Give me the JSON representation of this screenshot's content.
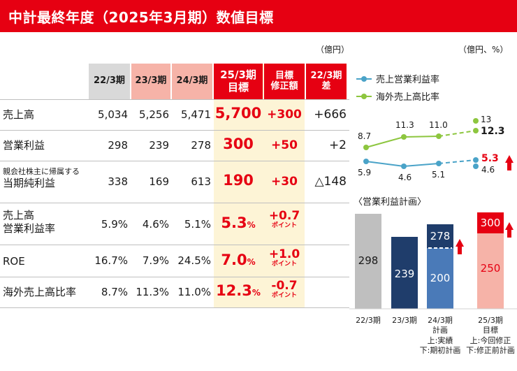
{
  "header": {
    "title": "中計最終年度（2025年3月期）数値目標"
  },
  "table": {
    "unit": "（億円）",
    "columns": [
      {
        "line1": "22/3期",
        "line2": ""
      },
      {
        "line1": "23/3期",
        "line2": ""
      },
      {
        "line1": "24/3期",
        "line2": ""
      },
      {
        "line1": "25/3期",
        "line2": "目標"
      },
      {
        "line1": "目標",
        "line2": "修正額"
      },
      {
        "line1": "22/3期",
        "line2": "差"
      }
    ],
    "rows": [
      {
        "label": "売上高",
        "label_small": "",
        "label2": "",
        "v22": "5,034",
        "v23": "5,256",
        "v24": "5,471",
        "target": "5,700",
        "target_unit": "",
        "revision": "+300",
        "revision_unit": "",
        "diff": "+666"
      },
      {
        "label": "営業利益",
        "label_small": "",
        "label2": "",
        "v22": "298",
        "v23": "239",
        "v24": "278",
        "target": "300",
        "target_unit": "",
        "revision": "+50",
        "revision_unit": "",
        "diff": "+2"
      },
      {
        "label": "",
        "label_small": "親会社株主に帰属する",
        "label2": "当期純利益",
        "v22": "338",
        "v23": "169",
        "v24": "613",
        "target": "190",
        "target_unit": "",
        "revision": "+30",
        "revision_unit": "",
        "diff": "△148"
      },
      {
        "label": "売上高",
        "label_small": "",
        "label2": "営業利益率",
        "v22": "5.9%",
        "v23": "4.6%",
        "v24": "5.1%",
        "target": "5.3",
        "target_unit": "%",
        "revision": "+0.7",
        "revision_unit": "ポイント",
        "diff": ""
      },
      {
        "label": "ROE",
        "label_small": "",
        "label2": "",
        "v22": "16.7%",
        "v23": "7.9%",
        "v24": "24.5%",
        "target": "7.0",
        "target_unit": "%",
        "revision": "+1.0",
        "revision_unit": "ポイント",
        "diff": ""
      },
      {
        "label": "海外売上高比率",
        "label_small": "",
        "label2": "",
        "v22": "8.7%",
        "v23": "11.3%",
        "v24": "11.0%",
        "target": "12.3",
        "target_unit": "%",
        "revision": "-0.7",
        "revision_unit": "ポイント",
        "diff": ""
      }
    ]
  },
  "line_chart": {
    "unit": "（億円、%）",
    "legend": [
      "売上営業利益率",
      "海外売上高比率"
    ],
    "colors": {
      "blue": "#4aa3c8",
      "green": "#8dc63f",
      "red": "#e60012"
    },
    "margin_values": [
      "5.9",
      "4.6",
      "5.1"
    ],
    "margin_target_new": "5.3",
    "margin_target_old": "4.6",
    "overseas_values": [
      "8.7",
      "11.3",
      "11.0"
    ],
    "overseas_target_old": "13",
    "overseas_target_new": "12.3"
  },
  "bar_chart": {
    "title": "〈営業利益計画〉",
    "bars": [
      {
        "value": "298",
        "categories": [
          "22/3期"
        ]
      },
      {
        "value": "239",
        "categories": [
          "23/3期"
        ]
      },
      {
        "value_top": "278",
        "value_bottom": "200",
        "categories": [
          "24/3期",
          "計画",
          "上:実績",
          "下:期初計画"
        ]
      },
      {
        "value_top": "300",
        "value_bottom": "250",
        "categories": [
          "25/3期",
          "目標",
          "上:今回修正",
          "下:修正前計画"
        ]
      }
    ],
    "colors": {
      "gray": "#bfbfbf",
      "navy": "#1f3d6b",
      "blue": "#4a7ab8",
      "pink": "#f6b3a8",
      "red": "#e60012"
    }
  },
  "chart_data": [
    {
      "type": "line",
      "categories": [
        "22/3期",
        "23/3期",
        "24/3期",
        "25/3期"
      ],
      "series": [
        {
          "name": "売上営業利益率",
          "values": [
            5.9,
            4.6,
            5.1,
            5.3
          ]
        },
        {
          "name": "海外売上高比率",
          "values": [
            8.7,
            11.3,
            11.0,
            12.3
          ]
        }
      ]
    },
    {
      "type": "bar",
      "title": "〈営業利益計画〉",
      "categories": [
        "22/3期",
        "23/3期",
        "24/3期",
        "25/3期"
      ],
      "series": [
        {
          "values": [
            298,
            239,
            278,
            300
          ]
        },
        {
          "values": [
            null,
            null,
            200,
            250
          ]
        }
      ]
    }
  ]
}
